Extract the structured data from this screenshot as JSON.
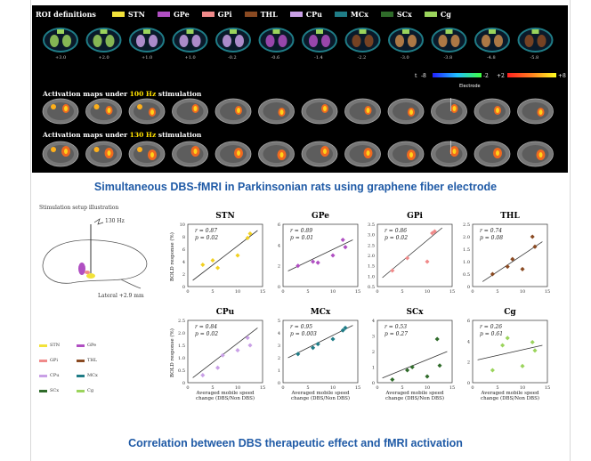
{
  "panel": {
    "roi_heading": "ROI definitions",
    "roi_legend": [
      {
        "name": "STN",
        "color": "#f2e23a"
      },
      {
        "name": "GPe",
        "color": "#b04fc2"
      },
      {
        "name": "GPi",
        "color": "#f08a8a"
      },
      {
        "name": "THL",
        "color": "#8a4a22"
      },
      {
        "name": "CPu",
        "color": "#c9a0e6"
      },
      {
        "name": "MCx",
        "color": "#1f7c86"
      },
      {
        "name": "SCx",
        "color": "#2f6b2a"
      },
      {
        "name": "Cg",
        "color": "#9bd45c"
      }
    ],
    "slice_labels": [
      "+3.0",
      "+2.0",
      "+1.0",
      "+1.0",
      "-0.2",
      "-0.6",
      "-1.4",
      "-2.2",
      "-3.0",
      "-3.8",
      "-4.8",
      "-5.8"
    ],
    "colorbar": {
      "neg_min": "-8",
      "neg_max": "-2",
      "pos_min": "+2",
      "pos_max": "+8",
      "prefix": "t"
    },
    "electrode_label": "Electrode",
    "row1_prefix": "Activation maps under ",
    "row1_hz": "100 Hz",
    "row1_suffix": " stimulation",
    "row2_prefix": "Activation maps under ",
    "row2_hz": "130 Hz",
    "row2_suffix": " stimulation"
  },
  "headline_top": "Simultaneous DBS-fMRI in Parkinsonian rats using graphene fiber electrode",
  "headline_bottom": "Correlation between DBS therapeutic effect and fMRI activation",
  "setup": {
    "title": "Stimulation setup illustration",
    "freq": "130 Hz",
    "lateral": "Lateral +2.9 mm",
    "legend": [
      {
        "name": "STN",
        "color": "#f2e23a"
      },
      {
        "name": "GPe",
        "color": "#b04fc2"
      },
      {
        "name": "GPi",
        "color": "#f08a8a"
      },
      {
        "name": "THL",
        "color": "#8a4a22"
      },
      {
        "name": "CPu",
        "color": "#c9a0e6"
      },
      {
        "name": "MCx",
        "color": "#1f7c86"
      },
      {
        "name": "SCx",
        "color": "#2f6b2a"
      },
      {
        "name": "Cg",
        "color": "#9bd45c"
      }
    ]
  },
  "axes": {
    "ylabel": "BOLD response (%)",
    "xlabel_line1": "Averaged mobile speed",
    "xlabel_line2": "change (DBS/Non DBS)"
  },
  "chart_data": [
    {
      "type": "scatter",
      "title": "STN",
      "r": "r = 0.87",
      "p": "p = 0.02",
      "color": "#f2d020",
      "xlim": [
        0,
        15
      ],
      "ylim": [
        0,
        10
      ],
      "xticks": [
        "0",
        "5",
        "10",
        "15"
      ],
      "yticks": [
        "0",
        "2",
        "4",
        "6",
        "8",
        "10"
      ],
      "points": [
        [
          3,
          3.5
        ],
        [
          5,
          4.2
        ],
        [
          6,
          3
        ],
        [
          10,
          5
        ],
        [
          12,
          7.8
        ],
        [
          12.5,
          8.5
        ]
      ],
      "fit": [
        [
          1,
          1
        ],
        [
          14,
          9
        ]
      ]
    },
    {
      "type": "scatter",
      "title": "GPe",
      "r": "r = 0.89",
      "p": "p = 0.01",
      "color": "#b04fc2",
      "xlim": [
        0,
        15
      ],
      "ylim": [
        0,
        6
      ],
      "xticks": [
        "0",
        "5",
        "10",
        "15"
      ],
      "yticks": [
        "0",
        "2",
        "4",
        "6"
      ],
      "points": [
        [
          3,
          2
        ],
        [
          6,
          2.4
        ],
        [
          7,
          2.3
        ],
        [
          10,
          3
        ],
        [
          12,
          4.5
        ],
        [
          12.5,
          3.8
        ]
      ],
      "fit": [
        [
          1,
          1.5
        ],
        [
          14,
          4.5
        ]
      ]
    },
    {
      "type": "scatter",
      "title": "GPi",
      "r": "r = 0.86",
      "p": "p = 0.02",
      "color": "#f08a8a",
      "xlim": [
        0,
        15
      ],
      "ylim": [
        0,
        3.5
      ],
      "xticks": [
        "0",
        "5",
        "10",
        "15"
      ],
      "yticks": [
        "0.5",
        "1.0",
        "1.5",
        "2.0",
        "2.5",
        "3.0",
        "3.5"
      ],
      "points": [
        [
          3,
          0.9
        ],
        [
          6,
          1.6
        ],
        [
          10,
          1.4
        ],
        [
          11,
          3.0
        ],
        [
          11.5,
          3.1
        ]
      ],
      "fit": [
        [
          1,
          0.5
        ],
        [
          13,
          3.3
        ]
      ]
    },
    {
      "type": "scatter",
      "title": "THL",
      "r": "r = 0.74",
      "p": "p = 0.08",
      "color": "#8a4a22",
      "xlim": [
        0,
        15
      ],
      "ylim": [
        0,
        2.5
      ],
      "xticks": [
        "0",
        "5",
        "10",
        "15"
      ],
      "yticks": [
        "0",
        "0.5",
        "1.0",
        "1.5",
        "2.0",
        "2.5"
      ],
      "points": [
        [
          4,
          0.5
        ],
        [
          7,
          0.8
        ],
        [
          8,
          1.1
        ],
        [
          10,
          0.7
        ],
        [
          12,
          2.0
        ],
        [
          12.5,
          1.6
        ]
      ],
      "fit": [
        [
          2,
          0.2
        ],
        [
          14,
          1.8
        ]
      ]
    },
    {
      "type": "scatter",
      "title": "CPu",
      "r": "r = 0.84",
      "p": "p = 0.02",
      "color": "#c9a0e6",
      "xlim": [
        0,
        15
      ],
      "ylim": [
        0,
        2.5
      ],
      "xticks": [
        "0",
        "5",
        "10",
        "15"
      ],
      "yticks": [
        "0",
        "0.5",
        "1.0",
        "1.5",
        "2.0",
        "2.5"
      ],
      "points": [
        [
          3,
          0.3
        ],
        [
          6,
          0.6
        ],
        [
          7,
          1.1
        ],
        [
          10,
          1.3
        ],
        [
          12,
          1.8
        ],
        [
          12.5,
          1.5
        ]
      ],
      "fit": [
        [
          1,
          0.2
        ],
        [
          14,
          2.2
        ]
      ]
    },
    {
      "type": "scatter",
      "title": "MCx",
      "r": "r = 0.95",
      "p": "p = 0.003",
      "color": "#1f7c86",
      "xlim": [
        0,
        15
      ],
      "ylim": [
        0,
        5
      ],
      "xticks": [
        "0",
        "5",
        "10",
        "15"
      ],
      "yticks": [
        "0",
        "1",
        "2",
        "3",
        "4",
        "5"
      ],
      "points": [
        [
          3,
          2.3
        ],
        [
          6,
          2.8
        ],
        [
          7,
          3.1
        ],
        [
          10,
          3.5
        ],
        [
          12,
          4.2
        ],
        [
          12.5,
          4.4
        ]
      ],
      "fit": [
        [
          1,
          2
        ],
        [
          14,
          4.6
        ]
      ]
    },
    {
      "type": "scatter",
      "title": "SCx",
      "r": "r = 0.53",
      "p": "p = 0.27",
      "color": "#2f6b2a",
      "xlim": [
        0,
        15
      ],
      "ylim": [
        0,
        4
      ],
      "xticks": [
        "0",
        "5",
        "10",
        "15"
      ],
      "yticks": [
        "0",
        "1",
        "2",
        "3",
        "4"
      ],
      "points": [
        [
          3,
          0.2
        ],
        [
          6,
          0.8
        ],
        [
          7,
          1.0
        ],
        [
          10,
          0.4
        ],
        [
          12,
          2.8
        ],
        [
          12.5,
          1.1
        ]
      ],
      "fit": [
        [
          1,
          0.3
        ],
        [
          14,
          2.0
        ]
      ]
    },
    {
      "type": "scatter",
      "title": "Cg",
      "r": "r = 0.26",
      "p": "p = 0.61",
      "color": "#9bd45c",
      "xlim": [
        0,
        15
      ],
      "ylim": [
        0,
        6
      ],
      "xticks": [
        "0",
        "5",
        "10",
        "15"
      ],
      "yticks": [
        "0",
        "2",
        "4",
        "6"
      ],
      "points": [
        [
          4,
          1.2
        ],
        [
          6,
          3.6
        ],
        [
          7,
          4.3
        ],
        [
          10,
          1.6
        ],
        [
          12,
          3.9
        ],
        [
          12.5,
          3.1
        ]
      ],
      "fit": [
        [
          1,
          2.2
        ],
        [
          14,
          3.6
        ]
      ]
    }
  ]
}
